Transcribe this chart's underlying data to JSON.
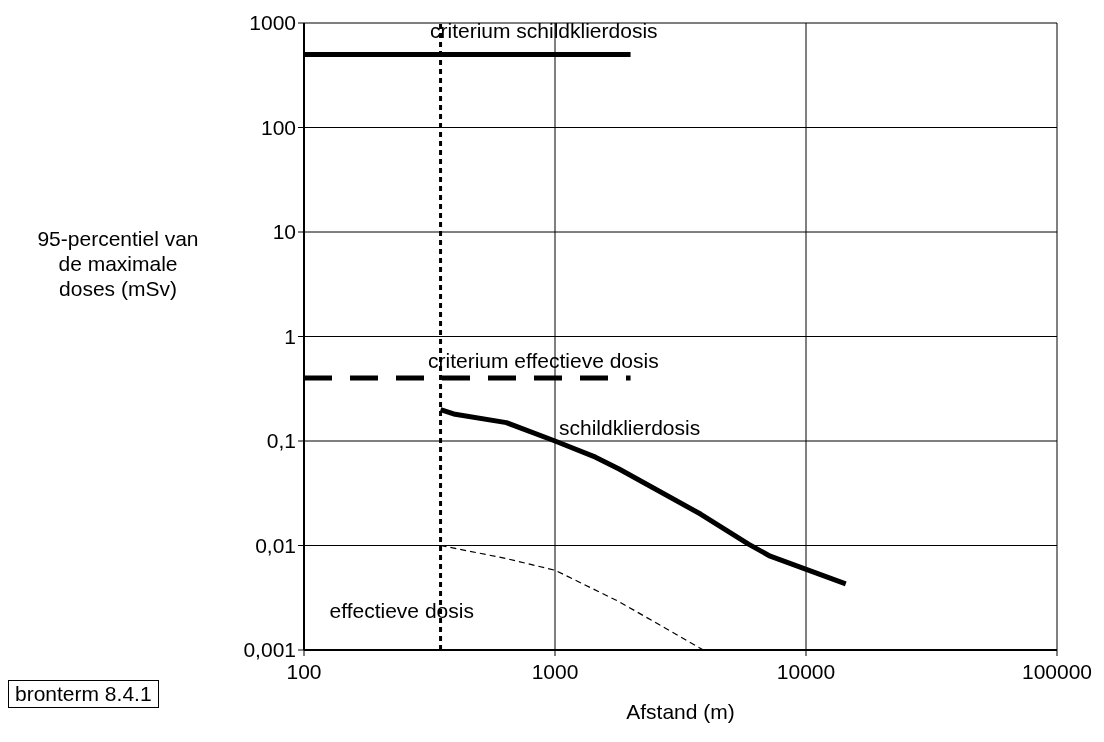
{
  "chart_data": {
    "type": "line",
    "xlabel": "Afstand (m)",
    "ylabel": "95-percentiel van de maximale doses (mSv)",
    "log": "xy",
    "grid": true,
    "xlim": [
      100,
      100000
    ],
    "xticks": [
      100,
      1000,
      10000,
      100000
    ],
    "ylim": [
      0.001,
      1000
    ],
    "yticks": [
      {
        "value": 0.001,
        "label": "0,001"
      },
      {
        "value": 0.01,
        "label": "0,01"
      },
      {
        "value": 0.1,
        "label": "0,1"
      },
      1,
      10,
      100,
      1000
    ],
    "series": [
      {
        "name": "criterium schildklierdosis",
        "color": "#000000",
        "line_style": "solid",
        "x": [
          100,
          2000
        ],
        "values": [
          500,
          500
        ]
      },
      {
        "name": "criterium effectieve dosis",
        "color": "#000000",
        "line_style": "dashed",
        "x": [
          100,
          2000
        ],
        "values": [
          0.4,
          0.4
        ]
      },
      {
        "name": "schildklierdosis",
        "color": "#000000",
        "line_style": "solid",
        "x": [
          350,
          400,
          640,
          1000,
          1450,
          1800,
          3800,
          5900,
          7200,
          14400
        ],
        "values": [
          0.2,
          0.18,
          0.15,
          0.1,
          0.07,
          0.054,
          0.02,
          0.0103,
          0.0079,
          0.0043
        ]
      },
      {
        "name": "effectieve dosis",
        "color": "#000000",
        "line_style": "dashed",
        "x": [
          350,
          640,
          1000,
          1800,
          3900
        ],
        "values": [
          0.01,
          0.0075,
          0.0058,
          0.0029,
          0.001
        ]
      }
    ],
    "ref_lines": [
      {
        "axis": "x",
        "value": 350,
        "line_style": "dotted",
        "color": "#000000"
      }
    ],
    "annotations": [
      "bronterm 8.4.1"
    ]
  }
}
